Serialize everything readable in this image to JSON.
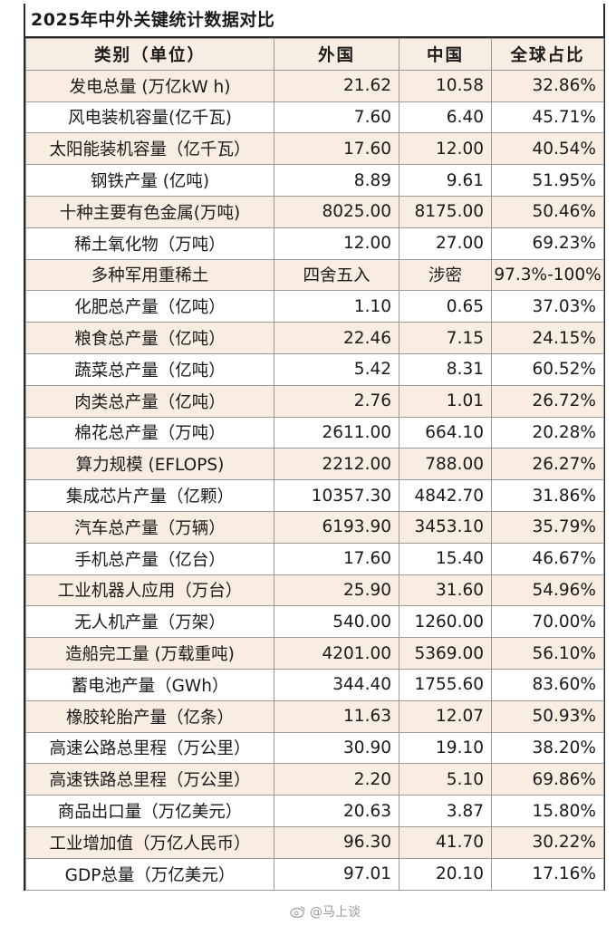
{
  "title": "2025年中外关键统计数据对比",
  "headers": [
    "类别（单位）",
    "外国",
    "中国",
    "全球占比"
  ],
  "rows": [
    {
      "name": "发电总量 (万亿kW h)",
      "foreign": "21.62",
      "china": "10.58",
      "share": "32.86%"
    },
    {
      "name": "风电装机容量(亿千瓦)",
      "foreign": "7.60",
      "china": "6.40",
      "share": "45.71%"
    },
    {
      "name": "太阳能装机容量（亿千瓦）",
      "foreign": "17.60",
      "china": "12.00",
      "share": "40.54%"
    },
    {
      "name": "钢铁产量 (亿吨)",
      "foreign": "8.89",
      "china": "9.61",
      "share": "51.95%"
    },
    {
      "name": "十种主要有色金属(万吨)",
      "foreign": "8025.00",
      "china": "8175.00",
      "share": "50.46%"
    },
    {
      "name": "稀土氧化物（万吨）",
      "foreign": "12.00",
      "china": "27.00",
      "share": "69.23%"
    },
    {
      "name": "多种军用重稀土",
      "foreign": "四舍五入",
      "china": "涉密",
      "share": "97.3%-100%"
    },
    {
      "name": "化肥总产量（亿吨）",
      "foreign": "1.10",
      "china": "0.65",
      "share": "37.03%"
    },
    {
      "name": "粮食总产量（亿吨）",
      "foreign": "22.46",
      "china": "7.15",
      "share": "24.15%"
    },
    {
      "name": "蔬菜总产量（亿吨）",
      "foreign": "5.42",
      "china": "8.31",
      "share": "60.52%"
    },
    {
      "name": "肉类总产量（亿吨）",
      "foreign": "2.76",
      "china": "1.01",
      "share": "26.72%"
    },
    {
      "name": "棉花总产量（万吨）",
      "foreign": "2611.00",
      "china": "664.10",
      "share": "20.28%"
    },
    {
      "name": "算力规模 (EFLOPS)",
      "foreign": "2212.00",
      "china": "788.00",
      "share": "26.27%"
    },
    {
      "name": "集成芯片产量（亿颗）",
      "foreign": "10357.30",
      "china": "4842.70",
      "share": "31.86%"
    },
    {
      "name": "汽车总产量（万辆）",
      "foreign": "6193.90",
      "china": "3453.10",
      "share": "35.79%"
    },
    {
      "name": "手机总产量（亿台）",
      "foreign": "17.60",
      "china": "15.40",
      "share": "46.67%"
    },
    {
      "name": "工业机器人应用（万台）",
      "foreign": "25.90",
      "china": "31.60",
      "share": "54.96%"
    },
    {
      "name": "无人机产量（万架）",
      "foreign": "540.00",
      "china": "1260.00",
      "share": "70.00%"
    },
    {
      "name": "造船完工量 (万载重吨)",
      "foreign": "4201.00",
      "china": "5369.00",
      "share": "56.10%"
    },
    {
      "name": "蓄电池产量（GWh）",
      "foreign": "344.40",
      "china": "1755.60",
      "share": "83.60%"
    },
    {
      "name": "橡胶轮胎产量（亿条）",
      "foreign": "11.63",
      "china": "12.07",
      "share": "50.93%"
    },
    {
      "name": "高速公路总里程（万公里）",
      "foreign": "30.90",
      "china": "19.10",
      "share": "38.20%"
    },
    {
      "name": "高速铁路总里程（万公里）",
      "foreign": "2.20",
      "china": "5.10",
      "share": "69.86%"
    },
    {
      "name": "商品出口量（万亿美元）",
      "foreign": "20.63",
      "china": "3.87",
      "share": "15.80%"
    },
    {
      "name": "工业增加值（万亿人民币）",
      "foreign": "96.30",
      "china": "41.70",
      "share": "30.22%"
    },
    {
      "name": "GDP总量（万亿美元）",
      "foreign": "97.01",
      "china": "20.10",
      "share": "17.16%"
    }
  ],
  "watermark": {
    "text": "@马上谈",
    "icon": "weibo-icon"
  },
  "colors": {
    "row_shade": "#f9ece1",
    "row_plain": "#ffffff",
    "border": "#9a9a9a"
  }
}
